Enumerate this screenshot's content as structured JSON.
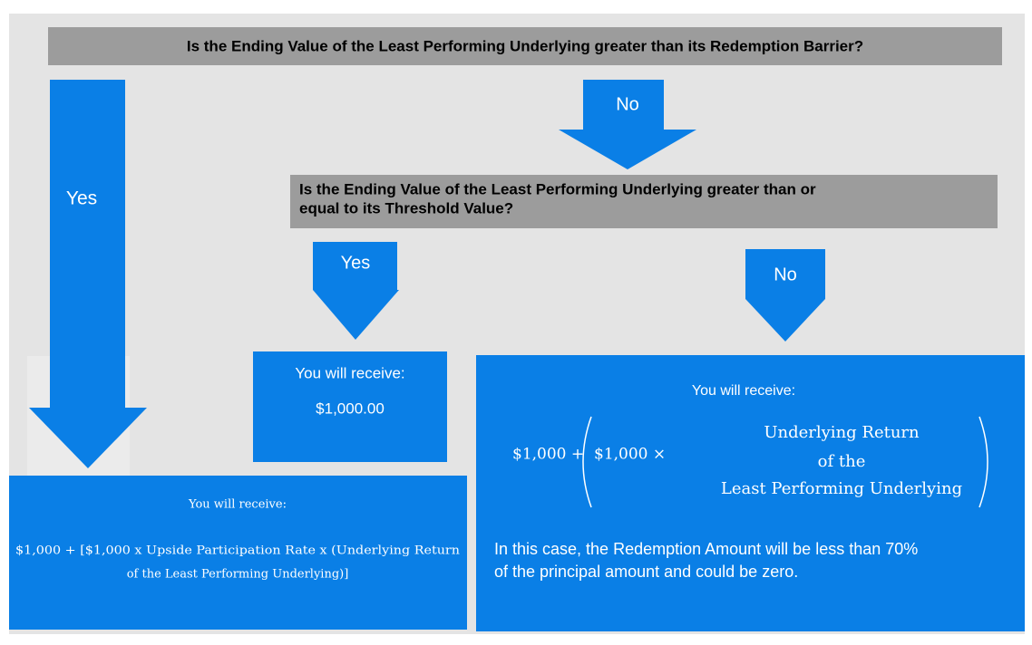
{
  "question_1": "Is the Ending Value of the Least Performing Underlying greater than its Redemption Barrier?",
  "yes_1": "Yes",
  "no_1": "No",
  "question_2": [
    "Is the Ending Value of the Least Performing Underlying greater than or",
    "equal to its Threshold Value?"
  ],
  "yes_2": "Yes",
  "no_2": "No",
  "outcome_yes_1": {
    "heading": "You will receive:",
    "formula": [
      "$1,000 + [$1,000 x Upside Participation Rate x (Underlying Return",
      "of the Least Performing Underlying)]"
    ]
  },
  "outcome_yes_2": {
    "heading": "You will receive:",
    "amount": "$1,000.00"
  },
  "outcome_no_2": {
    "heading": "You will receive:",
    "formula_left": "$1,000 +",
    "formula_inner": "$1,000 ×",
    "fraction": [
      "Underlying Return",
      "of the",
      "Least Performing Underlying"
    ],
    "note": [
      "In this case, the Redemption Amount will be less than 70%",
      "of the principal amount and could be zero."
    ]
  }
}
